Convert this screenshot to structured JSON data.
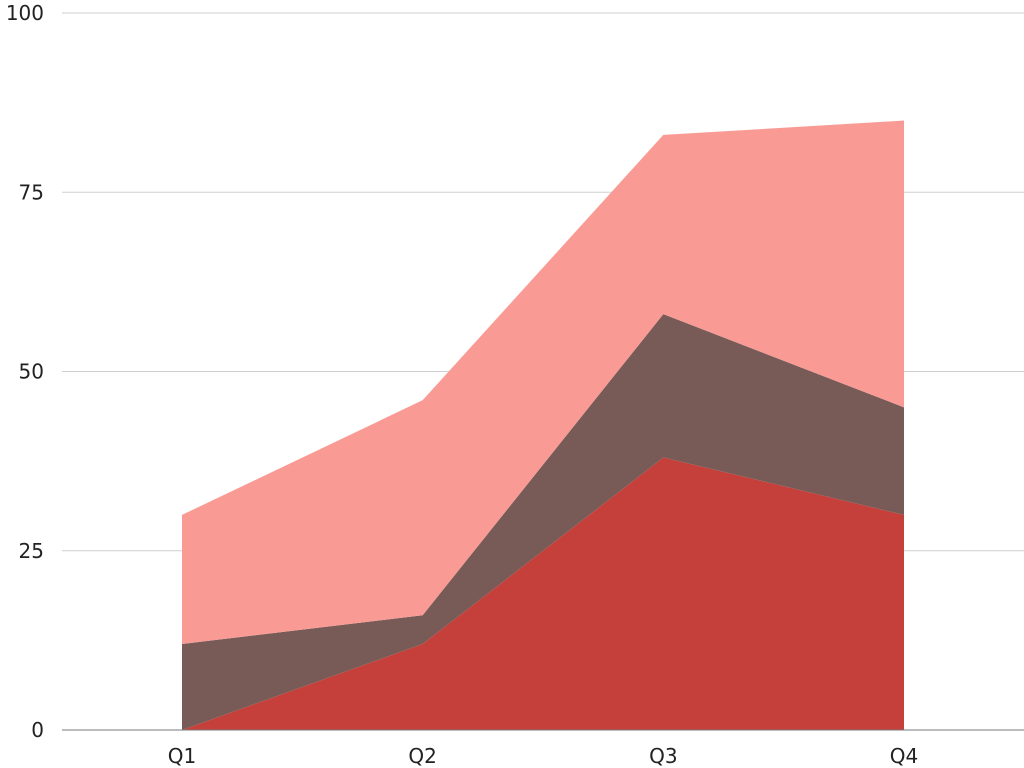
{
  "chart_data": {
    "type": "area",
    "stacked": true,
    "title": "",
    "xlabel": "",
    "ylabel": "",
    "categories": [
      "Q1",
      "Q2",
      "Q3",
      "Q4"
    ],
    "ylim": [
      0,
      100
    ],
    "yticks": [
      0,
      25,
      50,
      75,
      100
    ],
    "grid": true,
    "legend": "none",
    "series": [
      {
        "color": "#c5403a",
        "values": [
          0,
          12,
          38,
          30
        ]
      },
      {
        "color": "#785a57",
        "values": [
          12,
          4,
          20,
          15
        ]
      },
      {
        "color": "#f99b94",
        "values": [
          18,
          30,
          25,
          40
        ]
      }
    ]
  }
}
